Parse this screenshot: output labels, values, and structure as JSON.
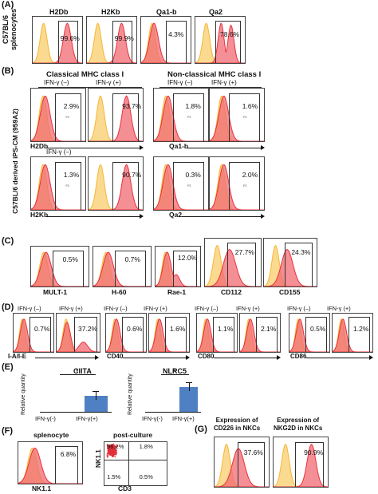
{
  "panels": {
    "A": {
      "label": "(A)",
      "side_label": "C57BL/6\nsplenocytes",
      "plots": [
        {
          "title": "H2Db",
          "pct": "99.6%"
        },
        {
          "title": "H2Kb",
          "pct": "99.9%"
        },
        {
          "title": "Qa1-b",
          "pct": "4.3%"
        },
        {
          "title": "Qa2",
          "pct": "78.6%"
        }
      ]
    },
    "B": {
      "label": "(B)",
      "header_classical": "Classical MHC class I",
      "header_nonclassical": "Non-classical MHC class I",
      "side_label": "C57BL/6 derived iPS-CM (959A2)",
      "ifn_minus": "IFN-γ (–)",
      "ifn_plus": "IFN-γ (+)",
      "markers": [
        "H2Db",
        "Qa1-b",
        "H2Kb",
        "Qa2"
      ],
      "pcts": [
        "2.9%",
        "93.7%",
        "1.8%",
        "1.6%",
        "1.3%",
        "90.7%",
        "0.3%",
        "2.0%"
      ]
    },
    "C": {
      "label": "(C)",
      "plots": [
        {
          "title": "MULT-1",
          "pct": "0.5%"
        },
        {
          "title": "H-60",
          "pct": "0.7%"
        },
        {
          "title": "Rae-1",
          "pct": "12.0%"
        },
        {
          "title": "CD112",
          "pct": "27.7%"
        },
        {
          "title": "CD155",
          "pct": "24.3%"
        }
      ]
    },
    "D": {
      "label": "(D)",
      "ifn_minus": "IFN-γ (–)",
      "ifn_plus": "IFN-γ (+)",
      "markers": [
        "I-A/I-E",
        "CD40",
        "CD80",
        "CD86"
      ],
      "pcts": [
        "0.7%",
        "37.2%",
        "0.6%",
        "1.6%",
        "1.1%",
        "2.1%",
        "0.5%",
        "1.2%"
      ]
    },
    "E": {
      "label": "(E)",
      "ylabel": "Relative quantity",
      "star": "*",
      "charts": [
        {
          "title": "CIITA",
          "categories": [
            "IFN-γ(-)",
            "IFN-γ(+)"
          ]
        },
        {
          "title": "NLRC5",
          "categories": [
            "IFN-γ(-)",
            "IFN-γ(+)"
          ]
        }
      ]
    },
    "F": {
      "label": "(F)",
      "hist_title": "splenocyte",
      "hist_pct": "6.8%",
      "hist_xlabel": "NK1.1",
      "dot_title": "post-culture",
      "dot_ylabel": "NK1.1",
      "dot_xlabel": "CD3",
      "quadrants": [
        "96.2%",
        "1.8%",
        "1.5%",
        "0.5%"
      ]
    },
    "G": {
      "label": "(G)",
      "plots": [
        {
          "title": "Expression of\nCD226 in NKCs",
          "pct": "37.6%"
        },
        {
          "title": "Expression of\nNKG2D in NKCs",
          "pct": "90.9%"
        }
      ]
    }
  },
  "chart_data": [
    {
      "type": "bar",
      "title": "CIITA",
      "categories": [
        "IFN-γ(-)",
        "IFN-γ(+)"
      ],
      "values": [
        0,
        0.45
      ],
      "ylabel": "Relative quantity"
    },
    {
      "type": "bar",
      "title": "NLRC5",
      "categories": [
        "IFN-γ(-)",
        "IFN-γ(+)"
      ],
      "values": [
        0,
        0.7
      ],
      "ylabel": "Relative quantity"
    }
  ],
  "colors": {
    "control": "#f7b733",
    "control_fill": "#f9d27c",
    "stain": "#e8323c",
    "stain_fill": "#f06a72",
    "bar": "#4f80c4"
  }
}
